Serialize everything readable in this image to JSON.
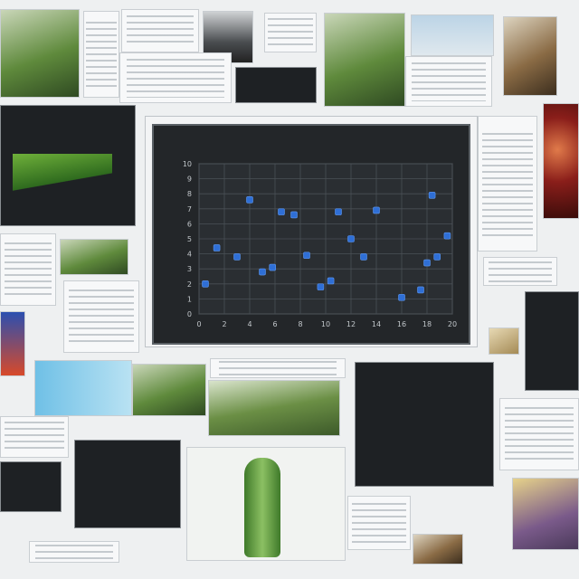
{
  "chart_data": {
    "type": "scatter",
    "title": "",
    "xlabel": "",
    "ylabel": "",
    "xlim": [
      0,
      20
    ],
    "ylim": [
      0,
      10
    ],
    "xticks": [
      0,
      2,
      4,
      6,
      8,
      10,
      12,
      14,
      16,
      18,
      20
    ],
    "yticks": [
      0,
      1,
      2,
      3,
      4,
      5,
      6,
      7,
      8,
      9,
      10
    ],
    "grid": true,
    "point_color": "#2f6fd6",
    "series": [
      {
        "x": [
          0.5,
          1.4,
          3.0,
          4.0,
          5.0,
          5.8,
          6.5,
          7.5,
          8.5,
          9.6,
          10.4,
          11.0,
          12.0,
          13.0,
          14.0,
          16.0,
          17.5,
          18.0,
          18.4,
          18.8,
          19.6
        ],
        "y": [
          2.0,
          4.4,
          3.8,
          7.6,
          2.8,
          3.1,
          6.8,
          6.6,
          3.9,
          1.8,
          2.2,
          6.8,
          5.0,
          3.8,
          6.9,
          1.1,
          1.6,
          3.4,
          7.9,
          3.8,
          5.2
        ]
      }
    ]
  }
}
